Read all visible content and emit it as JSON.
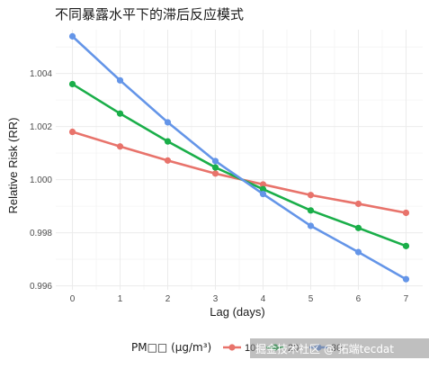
{
  "chart_data": {
    "type": "line",
    "title": "不同暴露水平下的滞后反应模式",
    "xlabel": "Lag (days)",
    "ylabel": "Relative Risk (RR)",
    "x": [
      0,
      1,
      2,
      3,
      4,
      5,
      6,
      7
    ],
    "xlim": [
      -0.35,
      7.35
    ],
    "ylim": [
      0.99585,
      1.00565
    ],
    "x_ticks": [
      "0",
      "1",
      "2",
      "3",
      "4",
      "5",
      "6",
      "7"
    ],
    "y_ticks": [
      "0.996",
      "0.998",
      "1.000",
      "1.002",
      "1.004"
    ],
    "y_tick_values": [
      0.996,
      0.998,
      1.0,
      1.002,
      1.004
    ],
    "grid": true,
    "legend_position": "bottom",
    "legend_title": "PM□□ (μg/m³)",
    "series": [
      {
        "name": "10",
        "color": "#e8736b",
        "values": [
          1.0018,
          1.00125,
          1.00072,
          1.00023,
          0.99982,
          0.99942,
          0.99909,
          0.99875
        ]
      },
      {
        "name": "20",
        "color": "#1aae49",
        "values": [
          1.0036,
          1.00249,
          1.00144,
          1.00046,
          0.99964,
          0.99884,
          0.99818,
          0.9975
        ]
      },
      {
        "name": "30",
        "color": "#6495e8",
        "values": [
          1.0054,
          1.00374,
          1.00216,
          1.0007,
          0.99946,
          0.99826,
          0.99727,
          0.99625
        ]
      }
    ]
  },
  "watermark": "掘金技术社区 @ 拓端tecdat"
}
